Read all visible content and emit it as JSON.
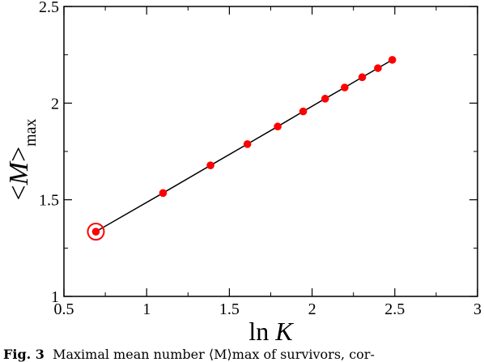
{
  "chart_data": {
    "type": "line",
    "x": [
      0.693,
      1.099,
      1.386,
      1.609,
      1.792,
      1.946,
      2.079,
      2.197,
      2.303,
      2.398,
      2.485
    ],
    "series": [
      {
        "values": [
          1.335,
          1.535,
          1.678,
          1.788,
          1.879,
          1.957,
          2.023,
          2.081,
          2.134,
          2.181,
          2.224
        ]
      }
    ],
    "highlighted_point_index": 0,
    "xlabel": "ln K",
    "ylabel": "<M>",
    "ylabel_subscript": "max",
    "xlim": [
      0.5,
      3.0
    ],
    "ylim": [
      1.0,
      2.5
    ],
    "xticks": [
      "0.5",
      "1",
      "1.5",
      "2",
      "2.5",
      "3"
    ],
    "yticks": [
      "1",
      "1.5",
      "2",
      "2.5"
    ],
    "grid": false,
    "colors": {
      "marker": "#ff0000",
      "line": "#000000"
    }
  },
  "caption": {
    "label": "Fig. 3",
    "text": "Maximal mean number ⟨M⟩max of survivors, cor-"
  }
}
